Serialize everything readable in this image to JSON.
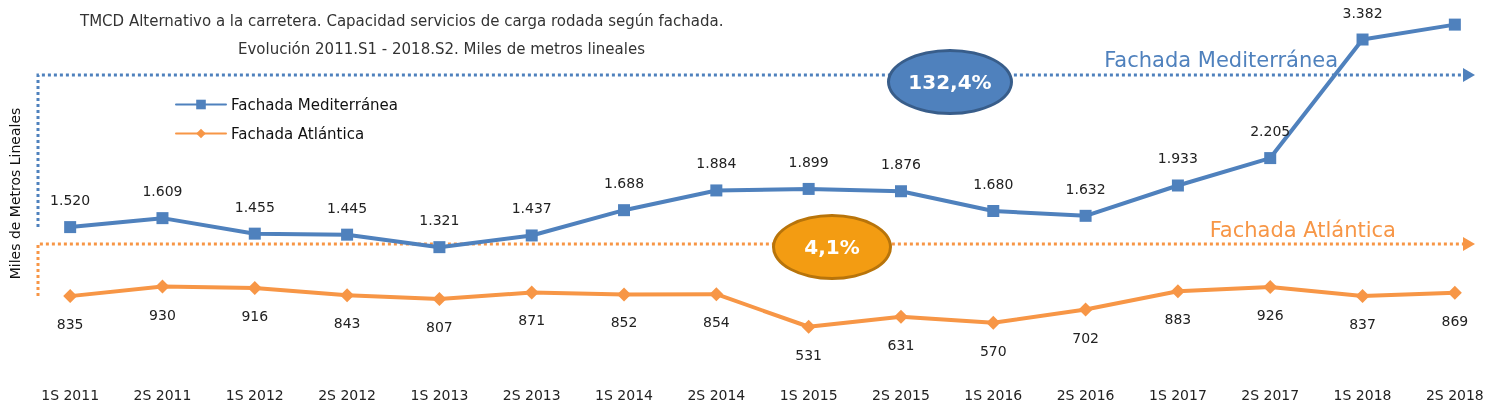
{
  "chart_data": {
    "type": "line",
    "title": "TMCD Alternativo a la carretera. Capacidad servicios de carga rodada según fachada.",
    "subtitle": "Evolución 2011.S1 - 2018.S2. Miles de metros lineales",
    "ylabel": "Miles de Metros Lineales",
    "categories": [
      "1S 2011",
      "2S 2011",
      "1S 2012",
      "2S 2012",
      "1S 2013",
      "2S 2013",
      "1S 2014",
      "2S 2014",
      "1S 2015",
      "2S 2015",
      "1S 2016",
      "2S 2016",
      "1S 2017",
      "2S 2017",
      "1S 2018",
      "2S 2018"
    ],
    "series": [
      {
        "name": "Fachada Mediterránea",
        "color": "#4f81bd",
        "marker": "square",
        "values": [
          1520,
          1609,
          1455,
          1445,
          1321,
          1437,
          1688,
          1884,
          1899,
          1876,
          1680,
          1632,
          1933,
          2205,
          3382,
          3530
        ],
        "value_labels": [
          "1.520",
          "1.609",
          "1.455",
          "1.445",
          "1.321",
          "1.437",
          "1.688",
          "1.884",
          "1.899",
          "1.876",
          "1.680",
          "1.632",
          "1.933",
          "2.205",
          "3.382",
          null
        ]
      },
      {
        "name": "Fachada Atlántica",
        "color": "#f79646",
        "marker": "diamond",
        "values": [
          835,
          930,
          916,
          843,
          807,
          871,
          852,
          854,
          531,
          631,
          570,
          702,
          883,
          926,
          837,
          869
        ],
        "value_labels": [
          "835",
          "930",
          "916",
          "843",
          "807",
          "871",
          "852",
          "854",
          "531",
          "631",
          "570",
          "702",
          "883",
          "926",
          "837",
          "869"
        ]
      }
    ],
    "annotations": [
      "Fachada Mediterránea",
      "132,4%",
      "Fachada Atlántica",
      "4,1%"
    ],
    "legend": "top left",
    "grid": false,
    "line_style": "solid"
  }
}
